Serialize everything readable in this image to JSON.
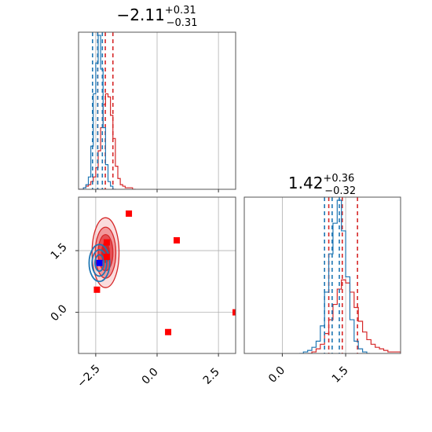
{
  "chart_data": {
    "type": "corner",
    "panels": [
      {
        "id": "param1-hist",
        "kind": "histogram",
        "title": {
          "main": "−2.11",
          "sup": "+0.31",
          "sub": "−0.31"
        },
        "xlim": [
          -3.2,
          3.2
        ],
        "x_ticks": [
          -2.5,
          0.0,
          2.5
        ],
        "grid": true,
        "series": [
          {
            "color": "#d62728",
            "quantiles": [
              -2.42,
              -2.11,
              -1.8
            ],
            "bins": [
              [
                -3.2,
                0
              ],
              [
                -3.0,
                0.01
              ],
              [
                -2.9,
                0.02
              ],
              [
                -2.8,
                0.03
              ],
              [
                -2.7,
                0.05
              ],
              [
                -2.6,
                0.08
              ],
              [
                -2.5,
                0.14
              ],
              [
                -2.4,
                0.25
              ],
              [
                -2.3,
                0.4
              ],
              [
                -2.2,
                0.55
              ],
              [
                -2.1,
                0.62
              ],
              [
                -2.0,
                0.6
              ],
              [
                -1.9,
                0.48
              ],
              [
                -1.8,
                0.33
              ],
              [
                -1.7,
                0.15
              ],
              [
                -1.6,
                0.07
              ],
              [
                -1.5,
                0.03
              ],
              [
                -1.4,
                0.02
              ],
              [
                -1.3,
                0.01
              ],
              [
                -1.0,
                0
              ]
            ]
          },
          {
            "color": "#1f77b4",
            "quantiles": [
              -2.63,
              -2.42,
              -2.23
            ],
            "bins": [
              [
                -3.2,
                0
              ],
              [
                -3.0,
                0.01
              ],
              [
                -2.9,
                0.03
              ],
              [
                -2.8,
                0.08
              ],
              [
                -2.7,
                0.28
              ],
              [
                -2.6,
                0.62
              ],
              [
                -2.5,
                0.82
              ],
              [
                -2.4,
                1.0
              ],
              [
                -2.3,
                0.78
              ],
              [
                -2.2,
                0.4
              ],
              [
                -2.1,
                0.16
              ],
              [
                -2.0,
                0.05
              ],
              [
                -1.9,
                0.02
              ],
              [
                -1.8,
                0
              ]
            ]
          }
        ]
      },
      {
        "id": "param2-hist",
        "kind": "histogram",
        "title": {
          "main": "1.42",
          "sup": "+0.36",
          "sub": "−0.32"
        },
        "xlim": [
          -0.9,
          2.8
        ],
        "x_ticks": [
          0.0,
          1.5
        ],
        "x_tick_labels": [
          "0.0",
          "1.5"
        ],
        "grid": true,
        "series": [
          {
            "color": "#d62728",
            "quantiles": [
              1.1,
              1.42,
              1.78
            ],
            "bins": [
              [
                0.6,
                0
              ],
              [
                0.7,
                0.01
              ],
              [
                0.8,
                0.03
              ],
              [
                0.9,
                0.06
              ],
              [
                1.0,
                0.13
              ],
              [
                1.1,
                0.22
              ],
              [
                1.2,
                0.32
              ],
              [
                1.3,
                0.42
              ],
              [
                1.4,
                0.48
              ],
              [
                1.5,
                0.46
              ],
              [
                1.6,
                0.4
              ],
              [
                1.7,
                0.3
              ],
              [
                1.8,
                0.21
              ],
              [
                1.9,
                0.14
              ],
              [
                2.0,
                0.09
              ],
              [
                2.1,
                0.06
              ],
              [
                2.2,
                0.04
              ],
              [
                2.3,
                0.03
              ],
              [
                2.4,
                0.02
              ],
              [
                2.5,
                0.01
              ],
              [
                2.6,
                0.01
              ],
              [
                2.8,
                0
              ]
            ]
          },
          {
            "color": "#1f77b4",
            "quantiles": [
              1.0,
              1.18,
              1.35
            ],
            "bins": [
              [
                0.4,
                0
              ],
              [
                0.5,
                0.01
              ],
              [
                0.6,
                0.02
              ],
              [
                0.7,
                0.04
              ],
              [
                0.8,
                0.08
              ],
              [
                0.9,
                0.18
              ],
              [
                1.0,
                0.4
              ],
              [
                1.1,
                0.65
              ],
              [
                1.2,
                0.85
              ],
              [
                1.3,
                1.0
              ],
              [
                1.4,
                0.8
              ],
              [
                1.5,
                0.5
              ],
              [
                1.6,
                0.22
              ],
              [
                1.7,
                0.08
              ],
              [
                1.8,
                0.03
              ],
              [
                1.9,
                0.01
              ],
              [
                2.0,
                0
              ]
            ]
          }
        ]
      },
      {
        "id": "joint-2d",
        "kind": "contour",
        "xlim": [
          -3.2,
          3.2
        ],
        "ylim": [
          -1.0,
          2.8
        ],
        "x_ticks": [
          -2.5,
          0.0,
          2.5
        ],
        "x_tick_labels": [
          "−2.5",
          "0.0",
          "2.5"
        ],
        "y_ticks": [
          0.0,
          1.5
        ],
        "y_tick_labels": [
          "0.0",
          "1.5"
        ],
        "grid": true,
        "red_contours": {
          "center": [
            -2.1,
            1.45
          ],
          "levels": [
            {
              "sx": 0.55,
              "sy": 0.85,
              "fill": "#f7c4c6",
              "opacity": 0.6
            },
            {
              "sx": 0.42,
              "sy": 0.62,
              "fill": "#f08b8e",
              "opacity": 0.85
            },
            {
              "sx": 0.3,
              "sy": 0.44,
              "fill": "#e44a4f",
              "opacity": 0.95
            },
            {
              "sx": 0.16,
              "sy": 0.24,
              "fill": "#d42227",
              "opacity": 1
            }
          ]
        },
        "blue_contours": {
          "center": [
            -2.35,
            1.2
          ],
          "levels": [
            {
              "sx": 0.42,
              "sy": 0.45
            },
            {
              "sx": 0.3,
              "sy": 0.32
            },
            {
              "sx": 0.18,
              "sy": 0.2
            }
          ]
        },
        "red_markers": [
          [
            -1.15,
            2.4
          ],
          [
            0.8,
            1.75
          ],
          [
            0.45,
            -0.48
          ],
          [
            -2.45,
            0.55
          ],
          [
            -2.05,
            1.7
          ],
          [
            -2.05,
            1.35
          ],
          [
            3.2,
            0.0
          ]
        ],
        "blue_markers": [
          [
            -2.35,
            1.2
          ]
        ]
      }
    ]
  }
}
